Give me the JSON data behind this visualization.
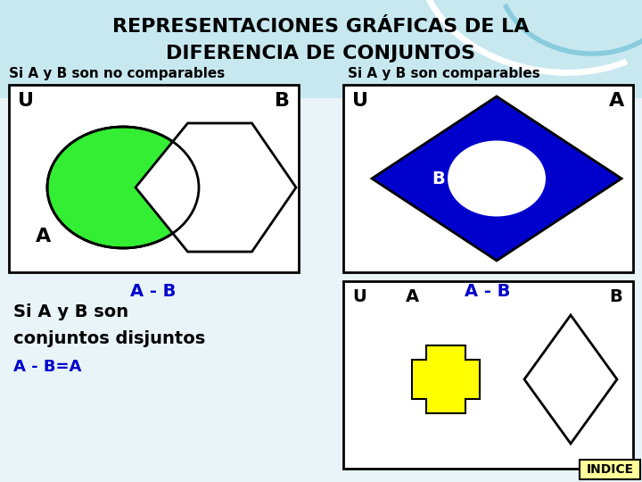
{
  "title_line1": "REPRESENTACIONES GRÁFICAS DE LA",
  "title_line2": "DIFERENCIA DE CONJUNTOS",
  "subtitle_left": "Si A y B son no comparables",
  "subtitle_right": "Si A y B son comparables",
  "label_ab_left": "A - B",
  "label_ab_right": "A - B",
  "label_ab_bottom": "A - B=A",
  "blue_color": "#0000cc",
  "green_color": "#33ee33",
  "yellow_color": "#ffff00",
  "white_color": "#ffffff",
  "black_color": "#000000",
  "bg_color": "#ddeeff",
  "header_bg": "#aaddee",
  "indice_label": "INDICE",
  "indice_bg": "#ffff99"
}
